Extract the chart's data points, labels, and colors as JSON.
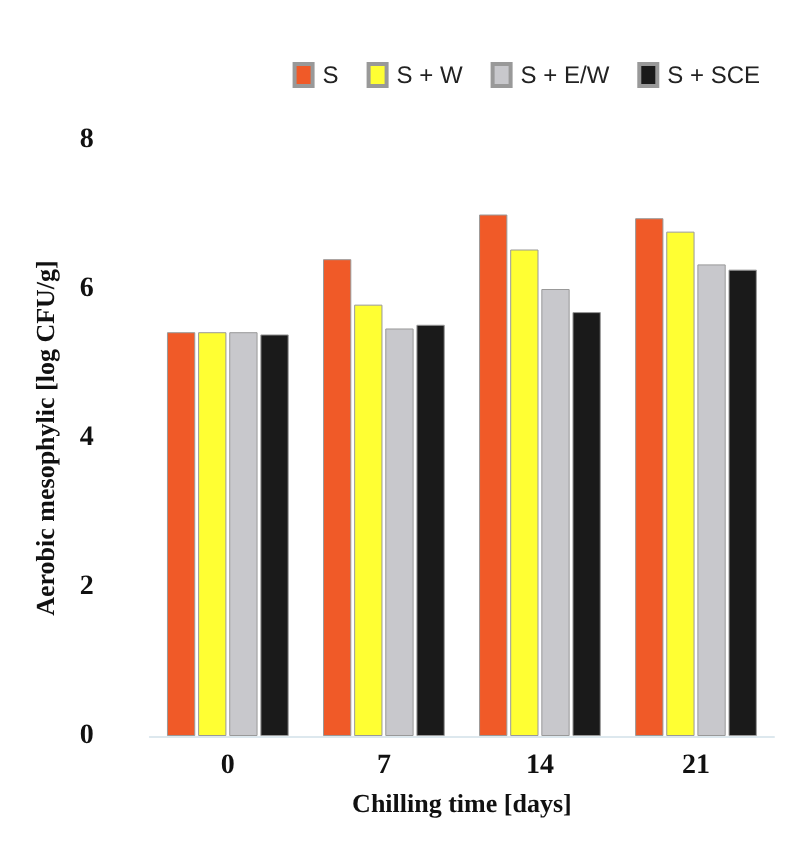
{
  "chart_data": {
    "type": "bar",
    "xlabel": "Chilling time [days]",
    "ylabel": "Aerobic mesophylic [log CFU/g]",
    "categories": [
      "0",
      "7",
      "14",
      "21"
    ],
    "series": [
      {
        "name": "S",
        "color": "#f05a28",
        "values": [
          5.42,
          6.4,
          7.0,
          6.95
        ]
      },
      {
        "name": "S + W",
        "color": "#ffff33",
        "values": [
          5.42,
          5.79,
          6.53,
          6.77
        ]
      },
      {
        "name": "S + E/W",
        "color": "#c8c8cc",
        "values": [
          5.42,
          5.47,
          6.0,
          6.33
        ]
      },
      {
        "name": "S + SCE",
        "color": "#1a1a1a",
        "values": [
          5.39,
          5.52,
          5.69,
          6.26
        ]
      }
    ],
    "ylim": [
      0,
      8
    ],
    "yticks": [
      0,
      2,
      4,
      6,
      8
    ],
    "grid": false,
    "legend": "top right"
  }
}
